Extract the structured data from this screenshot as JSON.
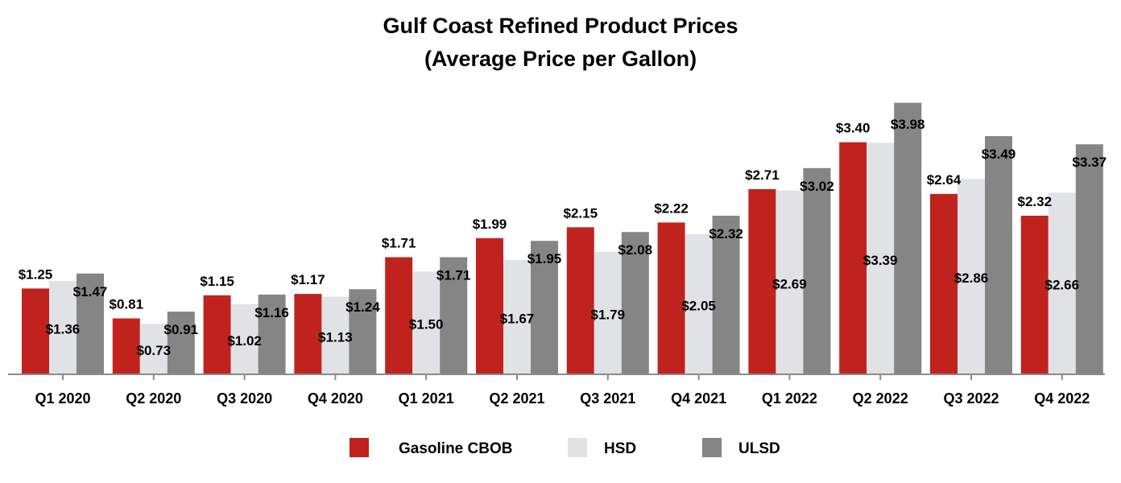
{
  "chart_data": {
    "type": "bar",
    "title": "Gulf Coast Refined Product Prices",
    "subtitle": "(Average Price per Gallon)",
    "xlabel": "",
    "ylabel": "",
    "ylim": [
      0,
      4.1
    ],
    "grid": false,
    "legend_position": "bottom",
    "categories": [
      "Q1 2020",
      "Q2 2020",
      "Q3 2020",
      "Q4 2020",
      "Q1 2021",
      "Q2 2021",
      "Q3 2021",
      "Q4 2021",
      "Q1 2022",
      "Q2 2022",
      "Q3 2022",
      "Q4 2022"
    ],
    "series": [
      {
        "name": "Gasoline CBOB",
        "color": "#c0231d",
        "values": [
          1.25,
          0.81,
          1.15,
          1.17,
          1.71,
          1.99,
          2.15,
          2.22,
          2.71,
          3.4,
          2.64,
          2.32
        ],
        "labels": [
          "$1.25",
          "$0.81",
          "$1.15",
          "$1.17",
          "$1.71",
          "$1.99",
          "$2.15",
          "$2.22",
          "$2.71",
          "$3.40",
          "$2.64",
          "$2.32"
        ]
      },
      {
        "name": "HSD",
        "color": "#e1e2e6",
        "values": [
          1.36,
          0.73,
          1.02,
          1.13,
          1.5,
          1.67,
          1.79,
          2.05,
          2.69,
          3.39,
          2.86,
          2.66
        ],
        "labels": [
          "$1.36",
          "$0.73",
          "$1.02",
          "$1.13",
          "$1.50",
          "$1.67",
          "$1.79",
          "$2.05",
          "$2.69",
          "$3.39",
          "$2.86",
          "$2.66"
        ]
      },
      {
        "name": "ULSD",
        "color": "#858585",
        "values": [
          1.47,
          0.91,
          1.16,
          1.24,
          1.71,
          1.95,
          2.08,
          2.32,
          3.02,
          3.98,
          3.49,
          3.37
        ],
        "labels": [
          "$1.47",
          "$0.91",
          "$1.16",
          "$1.24",
          "$1.71",
          "$1.95",
          "$2.08",
          "$2.32",
          "$3.02",
          "$3.98",
          "$3.49",
          "$3.37"
        ]
      }
    ]
  }
}
